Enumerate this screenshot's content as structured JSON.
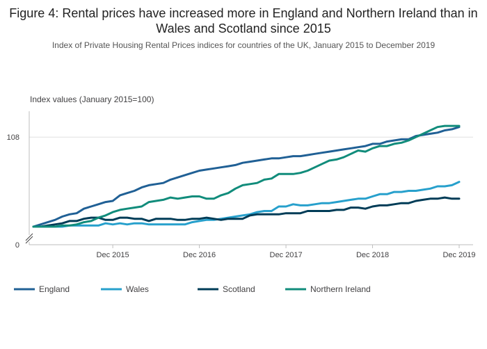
{
  "colors": {
    "england": "#206095",
    "wales": "#27a0cc",
    "scotland": "#003c57",
    "northern_ireland": "#118c7b",
    "grid": "#e0e0e0",
    "axis": "#bebebe"
  },
  "chart_data": {
    "type": "line",
    "title": "Figure 4: Rental prices have increased more in England and Northern Ireland than in Wales and Scotland since 2015",
    "subtitle": "Index of Private Housing Rental Prices indices for countries of the UK, January 2015 to December 2019",
    "ylabel": "Index values (January 2015=100)",
    "xlabel": "",
    "x_start": "2015-01",
    "x_end": "2019-12",
    "x_ticks": [
      "Dec 2015",
      "Dec 2016",
      "Dec 2017",
      "Dec 2018",
      "Dec 2019"
    ],
    "y_ticks": [
      {
        "value": 0,
        "label": "0"
      },
      {
        "value": 108,
        "label": "108"
      }
    ],
    "y_axis_break": true,
    "ylim_visible": [
      100,
      110
    ],
    "grid": true,
    "legend_position": "bottom",
    "series": [
      {
        "name": "England",
        "values": [
          100.0,
          100.2,
          100.4,
          100.6,
          100.9,
          101.1,
          101.2,
          101.6,
          101.8,
          102.0,
          102.2,
          102.3,
          102.8,
          103.0,
          103.2,
          103.5,
          103.7,
          103.8,
          103.9,
          104.2,
          104.4,
          104.6,
          104.8,
          105.0,
          105.1,
          105.2,
          105.3,
          105.4,
          105.5,
          105.7,
          105.8,
          105.9,
          106.0,
          106.1,
          106.1,
          106.2,
          106.3,
          106.3,
          106.4,
          106.5,
          106.6,
          106.7,
          106.8,
          106.9,
          107.0,
          107.1,
          107.2,
          107.4,
          107.4,
          107.6,
          107.7,
          107.8,
          107.8,
          108.1,
          108.2,
          108.3,
          108.4,
          108.6,
          108.7,
          108.9
        ]
      },
      {
        "name": "Wales",
        "values": [
          100.0,
          100.0,
          100.0,
          100.0,
          100.0,
          100.1,
          100.1,
          100.1,
          100.1,
          100.1,
          100.3,
          100.2,
          100.3,
          100.2,
          100.3,
          100.3,
          100.2,
          100.2,
          100.2,
          100.2,
          100.2,
          100.2,
          100.4,
          100.5,
          100.6,
          100.6,
          100.7,
          100.8,
          100.9,
          101.0,
          101.1,
          101.3,
          101.4,
          101.4,
          101.8,
          101.8,
          102.0,
          101.9,
          101.9,
          102.0,
          102.1,
          102.1,
          102.2,
          102.3,
          102.4,
          102.5,
          102.5,
          102.7,
          102.9,
          102.9,
          103.1,
          103.1,
          103.2,
          103.2,
          103.3,
          103.4,
          103.6,
          103.6,
          103.7,
          104.0
        ]
      },
      {
        "name": "Scotland",
        "values": [
          100.0,
          100.0,
          100.1,
          100.2,
          100.3,
          100.5,
          100.5,
          100.7,
          100.8,
          100.8,
          100.6,
          100.6,
          100.8,
          100.8,
          100.7,
          100.7,
          100.5,
          100.7,
          100.7,
          100.7,
          100.6,
          100.6,
          100.7,
          100.7,
          100.8,
          100.7,
          100.6,
          100.7,
          100.7,
          100.7,
          101.0,
          101.1,
          101.1,
          101.1,
          101.1,
          101.2,
          101.2,
          101.2,
          101.4,
          101.4,
          101.4,
          101.4,
          101.5,
          101.5,
          101.7,
          101.7,
          101.6,
          101.8,
          101.9,
          101.9,
          102.0,
          102.1,
          102.1,
          102.3,
          102.4,
          102.5,
          102.5,
          102.6,
          102.5,
          102.5
        ]
      },
      {
        "name": "Northern Ireland",
        "values": [
          100.0,
          100.0,
          100.0,
          100.0,
          100.1,
          100.1,
          100.2,
          100.4,
          100.5,
          100.8,
          101.0,
          101.3,
          101.5,
          101.6,
          101.7,
          101.8,
          102.2,
          102.3,
          102.4,
          102.6,
          102.5,
          102.6,
          102.7,
          102.7,
          102.5,
          102.5,
          102.8,
          103.0,
          103.4,
          103.7,
          103.8,
          103.9,
          104.2,
          104.3,
          104.7,
          104.7,
          104.7,
          104.8,
          105.0,
          105.3,
          105.6,
          105.9,
          106.0,
          106.2,
          106.5,
          106.8,
          106.7,
          107.0,
          107.2,
          107.2,
          107.4,
          107.5,
          107.7,
          108.0,
          108.3,
          108.6,
          108.9,
          109.0,
          109.0,
          109.0
        ]
      }
    ]
  }
}
